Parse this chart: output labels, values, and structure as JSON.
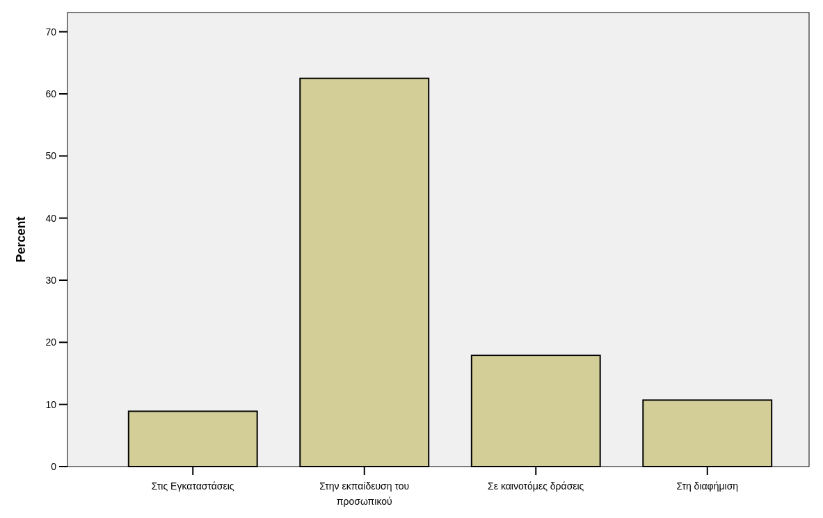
{
  "chart_data": {
    "type": "bar",
    "ylabel": "Percent",
    "categories": [
      "Στις Εγκαταστάσεις",
      "Στην εκπαίδευση του προσωπικού",
      "Σε καινοτόμες δράσεις",
      "Στη διαφήμιση"
    ],
    "values": [
      8.9,
      62.5,
      17.9,
      10.7
    ],
    "color": "#d3ce97",
    "ylim": [
      0,
      73.1
    ],
    "yticks": [
      0,
      10,
      20,
      30,
      40,
      50,
      60,
      70
    ],
    "grid": false
  }
}
